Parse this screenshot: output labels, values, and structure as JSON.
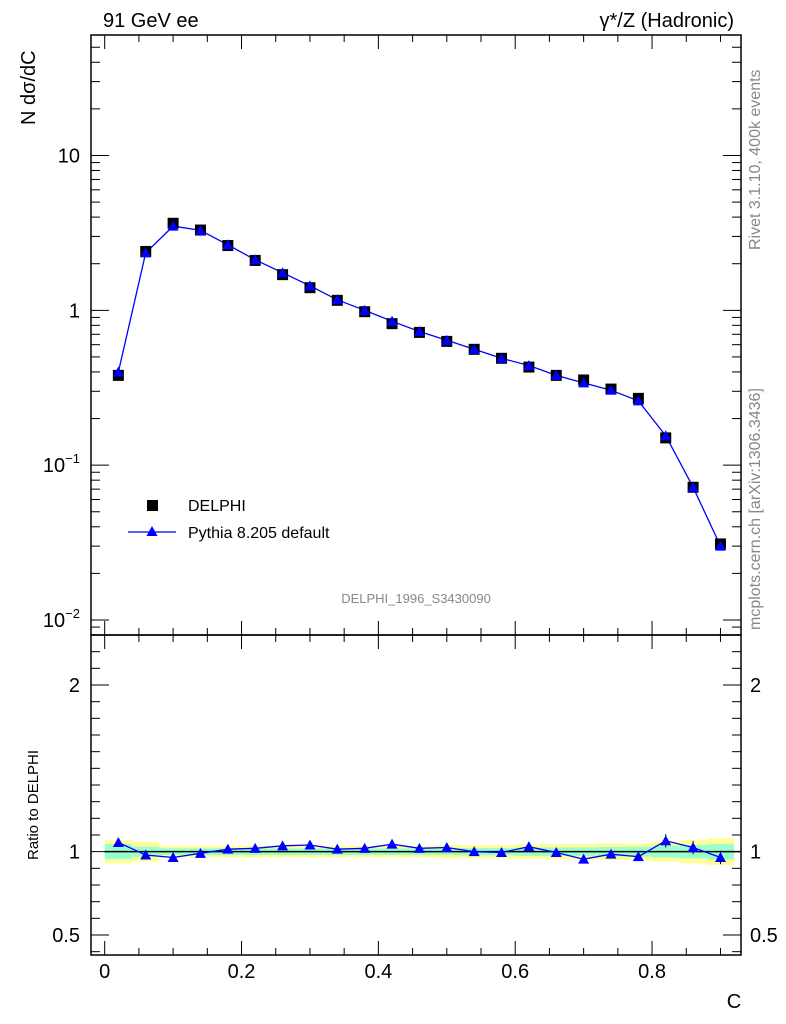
{
  "header": {
    "left": "91 GeV ee",
    "right": "γ*/Z (Hadronic)"
  },
  "side_labels": {
    "rivet": "Rivet 3.1.10,  400k events",
    "mcplots": "mcplots.cern.ch [arXiv:1306.3436]"
  },
  "analysis_id": "DELPHI_1996_S3430090",
  "colors": {
    "data": "#000000",
    "mc": "#0000ff",
    "band_yellow": "#ffff99",
    "band_green": "#99ffcc",
    "ref_line": "#006600"
  },
  "chart_data": [
    {
      "type": "scatter",
      "name": "main",
      "ylabel": "N dσ/dC",
      "yscale": "log",
      "ylim": [
        0.008,
        60
      ],
      "xlim": [
        -0.02,
        0.93
      ],
      "y_ticks": [
        {
          "value": 0.01,
          "base": "10",
          "exp": "−2"
        },
        {
          "value": 0.1,
          "base": "10",
          "exp": "−1"
        },
        {
          "value": 1,
          "base": "1",
          "exp": ""
        },
        {
          "value": 10,
          "base": "10",
          "exp": ""
        }
      ],
      "x": [
        0.02,
        0.06,
        0.1,
        0.14,
        0.18,
        0.22,
        0.26,
        0.3,
        0.34,
        0.38,
        0.42,
        0.46,
        0.5,
        0.54,
        0.58,
        0.62,
        0.66,
        0.7,
        0.74,
        0.78,
        0.82,
        0.86,
        0.9
      ],
      "series": [
        {
          "name": "DELPHI",
          "marker": "square",
          "values": [
            0.38,
            2.4,
            3.65,
            3.3,
            2.62,
            2.1,
            1.7,
            1.4,
            1.16,
            0.98,
            0.82,
            0.72,
            0.63,
            0.56,
            0.49,
            0.43,
            0.38,
            0.355,
            0.31,
            0.27,
            0.15,
            0.072,
            0.031
          ]
        },
        {
          "name": "Pythia 8.205 default",
          "marker": "triangle",
          "values": [
            0.4,
            2.35,
            3.5,
            3.28,
            2.65,
            2.12,
            1.75,
            1.44,
            1.17,
            1.0,
            0.85,
            0.73,
            0.64,
            0.56,
            0.49,
            0.44,
            0.38,
            0.34,
            0.305,
            0.26,
            0.155,
            0.072,
            0.03
          ]
        }
      ],
      "legend": {
        "position": "left",
        "entries": [
          "DELPHI",
          "Pythia 8.205 default"
        ]
      }
    },
    {
      "type": "line",
      "name": "ratio",
      "ylabel": "Ratio to DELPHI",
      "xlabel": "C",
      "ylim": [
        0.38,
        2.3
      ],
      "xlim": [
        -0.02,
        0.93
      ],
      "y_ticks": [
        {
          "value": 0.5,
          "label": "0.5"
        },
        {
          "value": 1,
          "label": "1"
        },
        {
          "value": 2,
          "label": "2"
        }
      ],
      "x_ticks": [
        {
          "value": 0,
          "label": "0"
        },
        {
          "value": 0.2,
          "label": "0.2"
        },
        {
          "value": 0.4,
          "label": "0.4"
        },
        {
          "value": 0.6,
          "label": "0.6"
        },
        {
          "value": 0.8,
          "label": "0.8"
        }
      ],
      "x": [
        0.02,
        0.06,
        0.1,
        0.14,
        0.18,
        0.22,
        0.26,
        0.3,
        0.34,
        0.38,
        0.42,
        0.46,
        0.5,
        0.54,
        0.58,
        0.62,
        0.66,
        0.7,
        0.74,
        0.78,
        0.82,
        0.86,
        0.9
      ],
      "values": [
        1.055,
        0.98,
        0.965,
        0.99,
        1.015,
        1.02,
        1.035,
        1.04,
        1.015,
        1.02,
        1.045,
        1.02,
        1.025,
        1.0,
        0.995,
        1.03,
        0.995,
        0.955,
        0.985,
        0.97,
        1.065,
        1.025,
        0.965
      ],
      "band_yellow": [
        0.07,
        0.06,
        0.035,
        0.035,
        0.035,
        0.035,
        0.035,
        0.035,
        0.035,
        0.035,
        0.035,
        0.035,
        0.04,
        0.04,
        0.04,
        0.045,
        0.045,
        0.045,
        0.05,
        0.05,
        0.06,
        0.07,
        0.08
      ],
      "band_green": [
        0.045,
        0.03,
        0.02,
        0.02,
        0.02,
        0.02,
        0.02,
        0.02,
        0.02,
        0.02,
        0.02,
        0.02,
        0.02,
        0.022,
        0.022,
        0.025,
        0.025,
        0.025,
        0.028,
        0.03,
        0.035,
        0.04,
        0.045
      ],
      "ref_value": 1
    }
  ]
}
